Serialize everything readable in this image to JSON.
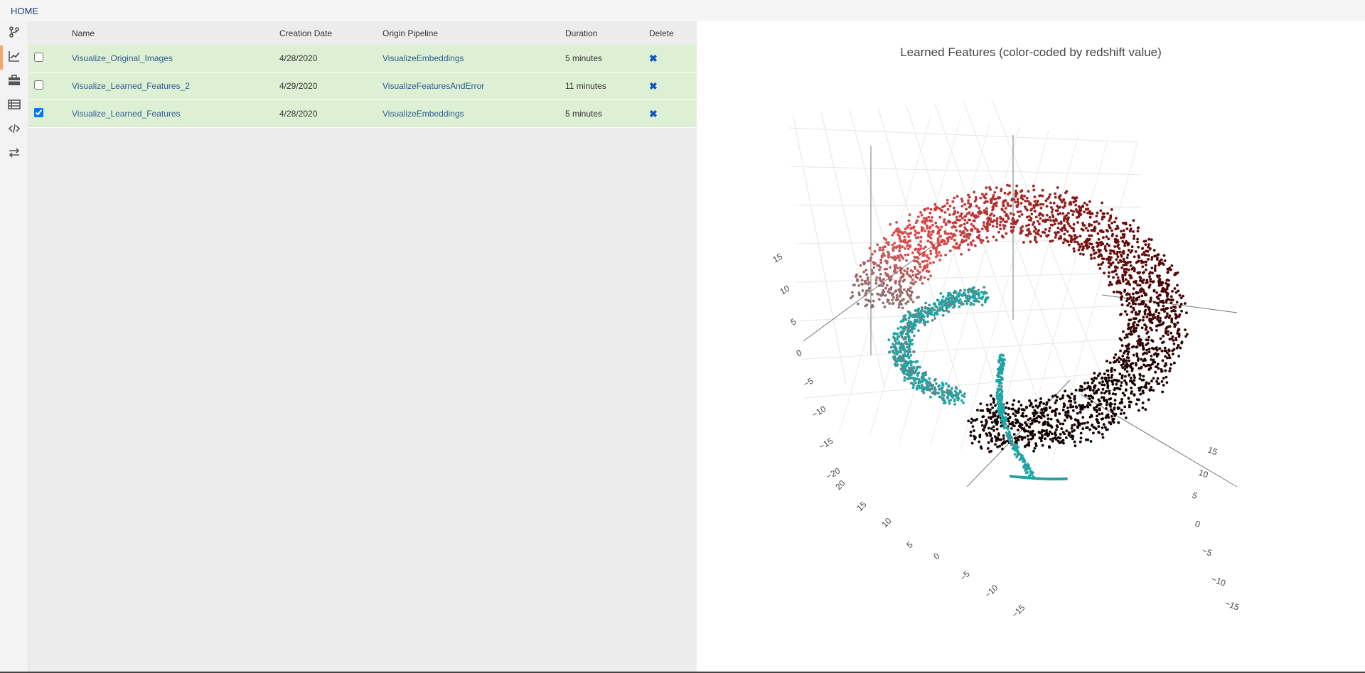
{
  "nav": {
    "home_label": "HOME"
  },
  "sidebar": {
    "items": [
      {
        "icon": "branch-icon",
        "active": false
      },
      {
        "icon": "line-chart-icon",
        "active": true
      },
      {
        "icon": "toolbox-icon",
        "active": false
      },
      {
        "icon": "table-list-icon",
        "active": false
      },
      {
        "icon": "code-icon",
        "active": false
      },
      {
        "icon": "swap-arrows-icon",
        "active": false
      }
    ]
  },
  "table": {
    "headers": {
      "name": "Name",
      "date": "Creation Date",
      "pipeline": "Origin Pipeline",
      "duration": "Duration",
      "delete": "Delete"
    },
    "rows": [
      {
        "name": "Visualize_Original_Images",
        "date": "4/28/2020",
        "pipeline": "VisualizeEmbeddings",
        "duration": "5 minutes",
        "delete_glyph": "✖",
        "checked": false
      },
      {
        "name": "Visualize_Learned_Features_2",
        "date": "4/29/2020",
        "pipeline": "VisualizeFeaturesAndError",
        "duration": "11 minutes",
        "delete_glyph": "✖",
        "checked": false
      },
      {
        "name": "Visualize_Learned_Features",
        "date": "4/28/2020",
        "pipeline": "VisualizeEmbeddings",
        "duration": "5 minutes",
        "delete_glyph": "✖",
        "checked": true
      }
    ]
  },
  "chart_data": {
    "type": "scatter",
    "title": "Learned Features (color-coded by redshift value)",
    "axes": {
      "z_ticks": [
        "15",
        "10",
        "5",
        "0",
        "−5",
        "−10",
        "−15",
        "−20"
      ],
      "x_ticks": [
        "20",
        "15",
        "10",
        "5",
        "0",
        "−5",
        "−10",
        "−15"
      ],
      "y_ticks": [
        "15",
        "10",
        "5",
        "0",
        "−5",
        "−10",
        "−15"
      ]
    },
    "colorscale": [
      "#00b3b3",
      "#e24a4a",
      "#6a0a0a",
      "#120000"
    ],
    "grid": true
  }
}
